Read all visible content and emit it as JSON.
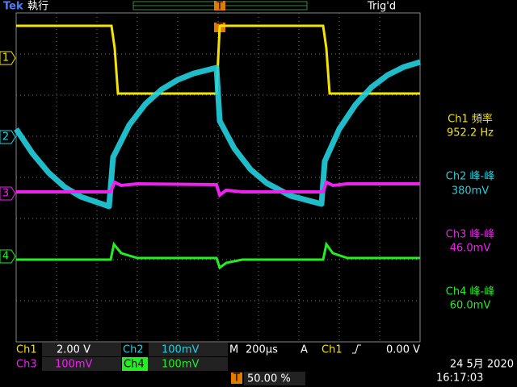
{
  "header": {
    "brand": "Tek",
    "run_state": "執行",
    "trigger_state": "Trig'd",
    "trigger_marker": "T"
  },
  "channel_markers": [
    "1",
    "2",
    "3",
    "4"
  ],
  "measurements": [
    {
      "label": "Ch1 頻率",
      "value": "952.2 Hz"
    },
    {
      "label": "Ch2 峰-峰",
      "value": "380mV"
    },
    {
      "label": "Ch3 峰-峰",
      "value": "46.0mV"
    },
    {
      "label": "Ch4 峰-峰",
      "value": "60.0mV"
    }
  ],
  "status_bar": {
    "ch1": {
      "name": "Ch1",
      "scale": "2.00 V"
    },
    "ch2": {
      "name": "Ch2",
      "scale": "100mV"
    },
    "ch3": {
      "name": "Ch3",
      "scale": "100mV"
    },
    "ch4": {
      "name": "Ch4",
      "scale": "100mV"
    },
    "timebase_label": "M",
    "timebase": "200µs",
    "trigger_mode": "A",
    "trigger_source": "Ch1",
    "trigger_level": "0.00 V",
    "trigger_position": "50.00 %",
    "date": "24 5月 2020",
    "time": "16:17:03"
  }
}
